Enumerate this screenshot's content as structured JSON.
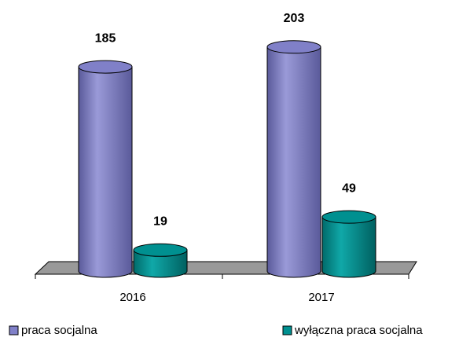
{
  "chart_data": {
    "type": "bar3d_cylinder",
    "categories": [
      "2016",
      "2017"
    ],
    "series": [
      {
        "name": "praca socjalna",
        "color": "#8080c8",
        "values": [
          185,
          203
        ]
      },
      {
        "name": "wyłączna praca socjalna",
        "color": "#009090",
        "values": [
          19,
          49
        ]
      }
    ],
    "legend": "bottom"
  }
}
